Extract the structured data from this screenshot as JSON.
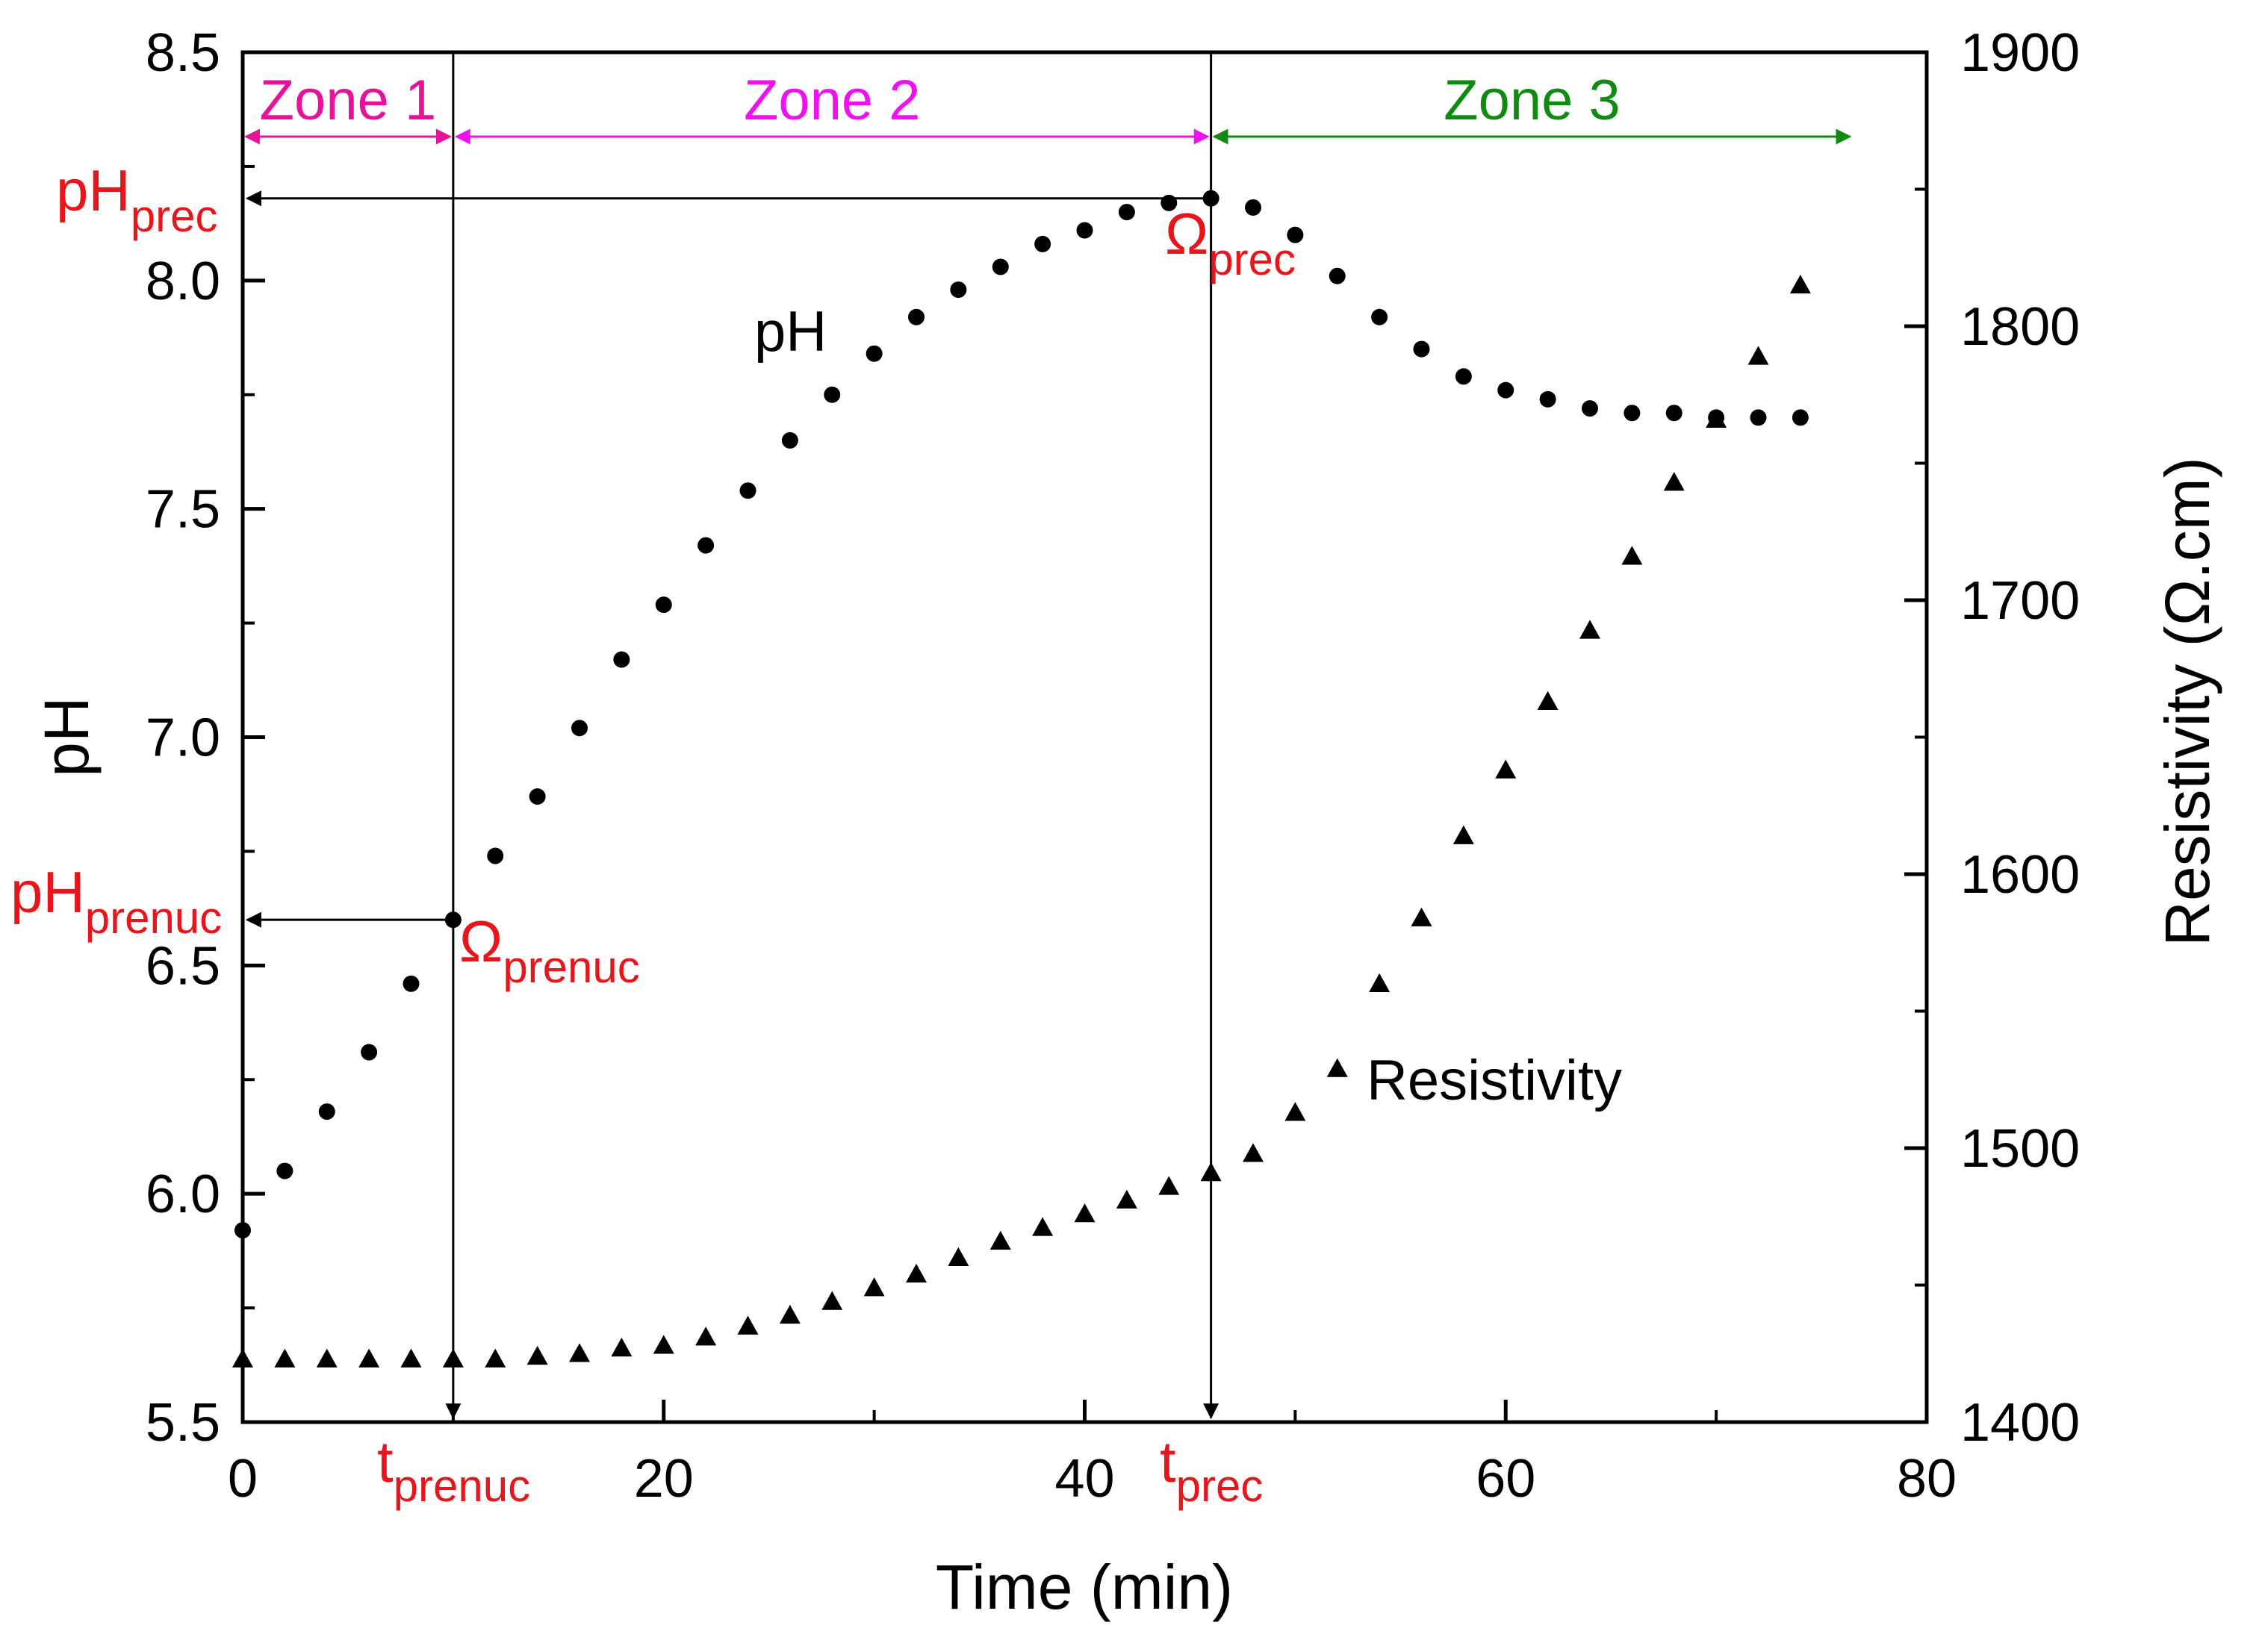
{
  "chart_data": {
    "type": "scatter",
    "xlabel": "Time (min)",
    "ylabel": "pH",
    "y2label": "Resistivity (Ω.cm)",
    "xlim": [
      0,
      80
    ],
    "ylim": [
      5.5,
      8.5
    ],
    "y2lim": [
      1400,
      1900
    ],
    "x_ticks": [
      "0",
      "20",
      "40",
      "60",
      "80"
    ],
    "y_ticks": [
      "5.5",
      "6.0",
      "6.5",
      "7.0",
      "7.5",
      "8.0",
      "8.5"
    ],
    "y2_ticks": [
      "1400",
      "1500",
      "1600",
      "1700",
      "1800",
      "1900"
    ],
    "series": [
      {
        "name": "pH",
        "axis": "left",
        "marker": "circle",
        "x": [
          0,
          2,
          4,
          6,
          8,
          10,
          12,
          14,
          16,
          18,
          20,
          22,
          24,
          26,
          28,
          30,
          32,
          34,
          36,
          38,
          40,
          42,
          44,
          46,
          48,
          50,
          52,
          54,
          56,
          58,
          60,
          62,
          64,
          66,
          68,
          70,
          72,
          74
        ],
        "values": [
          5.92,
          6.05,
          6.18,
          6.31,
          6.46,
          6.6,
          6.74,
          6.87,
          7.02,
          7.17,
          7.29,
          7.42,
          7.54,
          7.65,
          7.75,
          7.84,
          7.92,
          7.98,
          8.03,
          8.08,
          8.11,
          8.15,
          8.17,
          8.18,
          8.16,
          8.1,
          8.01,
          7.92,
          7.85,
          7.79,
          7.76,
          7.74,
          7.72,
          7.71,
          7.71,
          7.7,
          7.7,
          7.7
        ]
      },
      {
        "name": "Resistivity",
        "axis": "right",
        "marker": "triangle",
        "x": [
          0,
          2,
          4,
          6,
          8,
          10,
          12,
          14,
          16,
          18,
          20,
          22,
          24,
          26,
          28,
          30,
          32,
          34,
          36,
          38,
          40,
          42,
          44,
          46,
          48,
          50,
          52,
          54,
          56,
          58,
          60,
          62,
          64,
          66,
          68,
          70,
          72,
          74
        ],
        "values": [
          1423,
          1423,
          1423,
          1423,
          1423,
          1423,
          1423,
          1424,
          1425,
          1427,
          1428,
          1431,
          1435,
          1439,
          1444,
          1449,
          1454,
          1460,
          1466,
          1471,
          1476,
          1481,
          1486,
          1491,
          1498,
          1513,
          1529,
          1560,
          1584,
          1614,
          1638,
          1663,
          1689,
          1716,
          1743,
          1766,
          1789,
          1815
        ]
      }
    ],
    "zones": [
      {
        "label": "Zone 1",
        "x_start": 0,
        "x_end": 10,
        "color": "#e8119a"
      },
      {
        "label": "Zone 2",
        "x_start": 10,
        "x_end": 46,
        "color": "#f010f0"
      },
      {
        "label": "Zone 3",
        "x_start": 46,
        "x_end": 76.5,
        "color": "#118a11"
      }
    ],
    "markers": {
      "t_prenuc": 10,
      "t_prec": 46,
      "pH_prenuc": 6.6,
      "pH_prec": 8.18
    },
    "annotations": {
      "pH_prec": {
        "main": "pH",
        "sub": "prec"
      },
      "pH_prenuc": {
        "main": "pH",
        "sub": "prenuc"
      },
      "omega_prec": {
        "main": "Ω",
        "sub": "prec"
      },
      "omega_prenuc": {
        "main": "Ω",
        "sub": "prenuc"
      },
      "t_prenuc": {
        "main": "t",
        "sub": "prenuc"
      },
      "t_prec": {
        "main": "t",
        "sub": "prec"
      }
    },
    "series_labels": {
      "ph": "pH",
      "resistivity": "Resistivity"
    },
    "colors": {
      "annotation": "#e8161b",
      "data": "#000000"
    }
  }
}
